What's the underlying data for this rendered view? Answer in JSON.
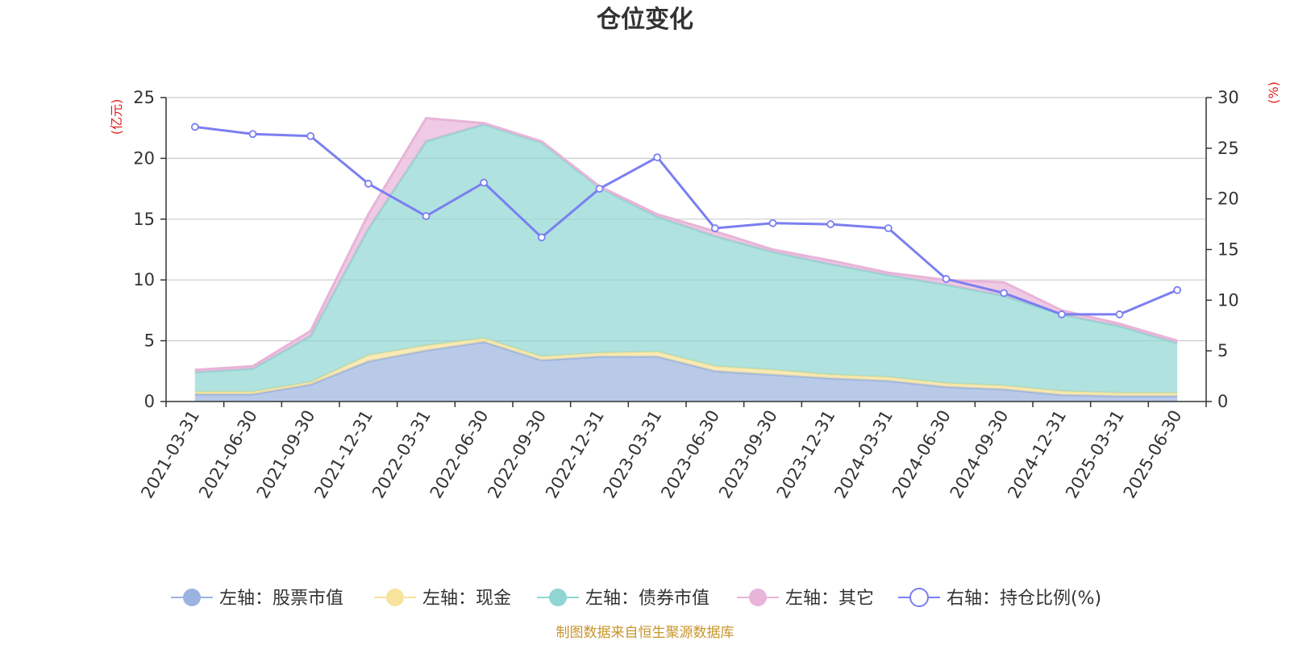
{
  "chart_data": {
    "type": "area",
    "title": "仓位变化",
    "left_axis_unit": "(亿元)",
    "right_axis_unit": "(%)",
    "categories": [
      "2021-03-31",
      "2021-06-30",
      "2021-09-30",
      "2021-12-31",
      "2022-03-31",
      "2022-06-30",
      "2022-09-30",
      "2022-12-31",
      "2023-03-31",
      "2023-06-30",
      "2023-09-30",
      "2023-12-31",
      "2024-03-31",
      "2024-06-30",
      "2024-09-30",
      "2024-12-31",
      "2025-03-31",
      "2025-06-30"
    ],
    "left_axis": {
      "min": 0,
      "max": 25,
      "ticks": [
        0,
        5,
        10,
        15,
        20,
        25
      ]
    },
    "right_axis": {
      "min": 0,
      "max": 30,
      "ticks": [
        0,
        5,
        10,
        15,
        20,
        25,
        30
      ]
    },
    "series": [
      {
        "name": "左轴：股票市值",
        "axis": "left",
        "kind": "stacked-area",
        "color": "#9bb3e0",
        "values": [
          0.6,
          0.6,
          1.4,
          3.3,
          4.2,
          4.9,
          3.4,
          3.7,
          3.7,
          2.5,
          2.2,
          1.9,
          1.7,
          1.2,
          1.0,
          0.55,
          0.45,
          0.45
        ]
      },
      {
        "name": "左轴：现金",
        "axis": "left",
        "kind": "stacked-area",
        "color": "#f7e39b",
        "values": [
          0.2,
          0.2,
          0.2,
          0.5,
          0.4,
          0.3,
          0.3,
          0.3,
          0.4,
          0.4,
          0.4,
          0.3,
          0.3,
          0.3,
          0.3,
          0.3,
          0.25,
          0.25
        ]
      },
      {
        "name": "左轴：债券市值",
        "axis": "left",
        "kind": "stacked-area",
        "color": "#8fd5d2",
        "values": [
          1.6,
          1.9,
          3.8,
          10.4,
          16.8,
          17.6,
          17.6,
          13.6,
          11.1,
          10.7,
          9.7,
          9.1,
          8.4,
          8.1,
          7.4,
          6.3,
          5.5,
          4.1
        ]
      },
      {
        "name": "左轴：其它",
        "axis": "left",
        "kind": "stacked-area",
        "color": "#e8b4d8",
        "values": [
          0.2,
          0.2,
          0.4,
          1.2,
          1.9,
          0.1,
          0.1,
          0.1,
          0.2,
          0.4,
          0.2,
          0.3,
          0.2,
          0.4,
          1.1,
          0.35,
          0.2,
          0.2
        ]
      },
      {
        "name": "右轴：持仓比例(%)",
        "axis": "right",
        "kind": "line",
        "color": "#7a7ff0",
        "values": [
          27.1,
          26.4,
          26.2,
          21.5,
          18.3,
          21.6,
          16.2,
          21.0,
          24.1,
          17.1,
          17.6,
          17.5,
          17.1,
          12.1,
          10.7,
          8.6,
          8.6,
          11.0
        ]
      }
    ],
    "grid": true,
    "legend_position": "bottom"
  },
  "footer": {
    "source_text": "制图数据来自恒生聚源数据库"
  }
}
